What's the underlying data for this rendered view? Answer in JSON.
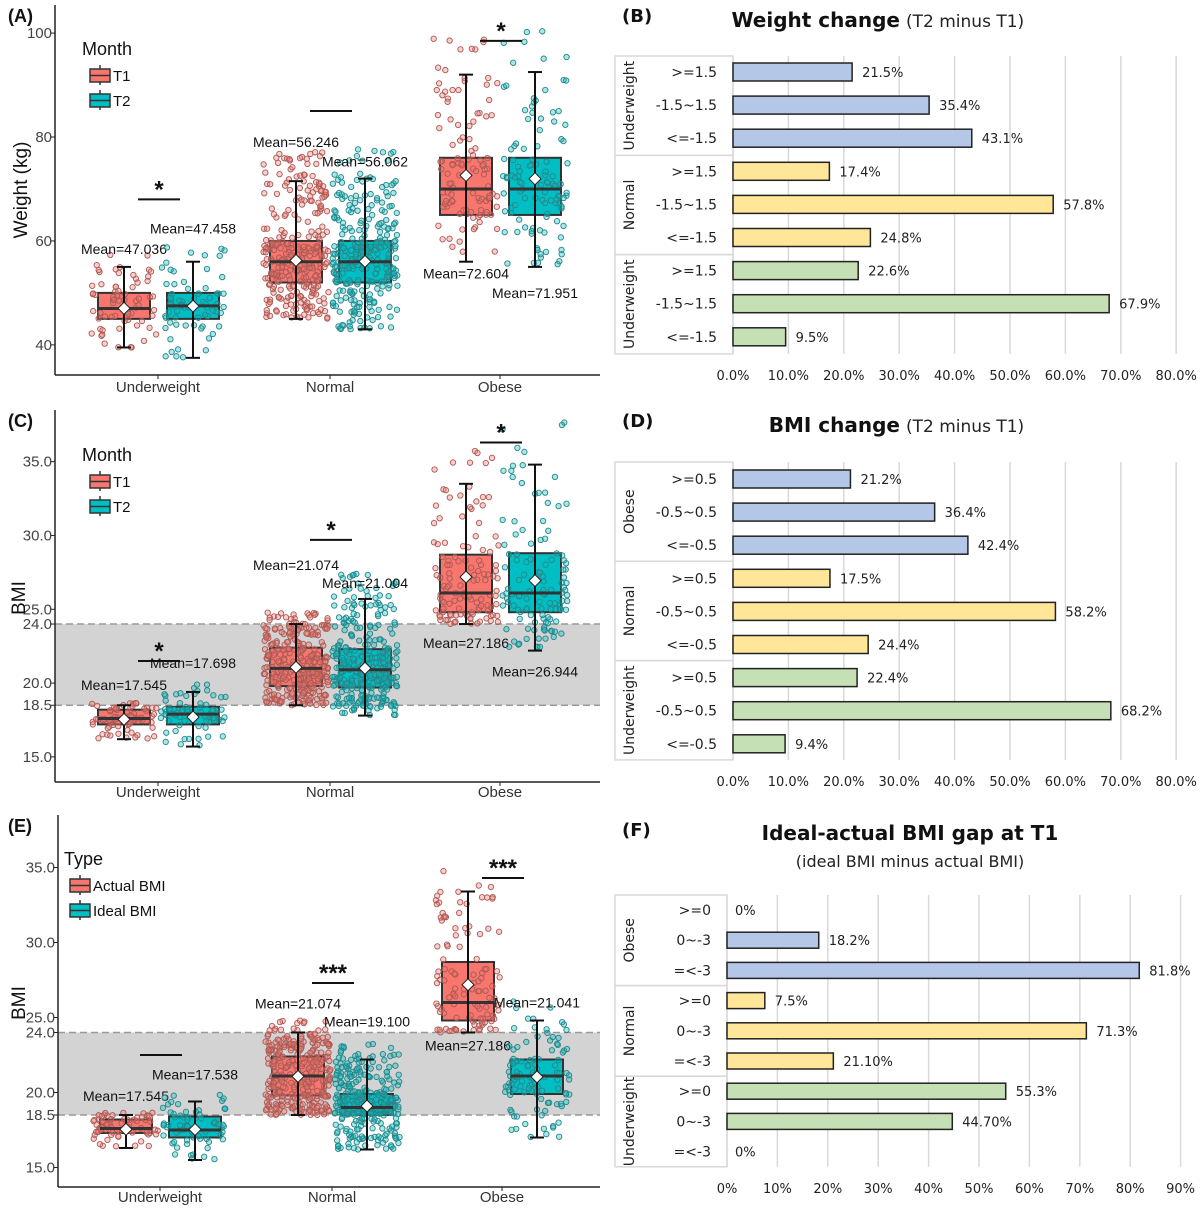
{
  "chart_data": [
    {
      "panel_label": "(A)",
      "type": "box",
      "ylabel": "Weight (kg)",
      "xlabel": "",
      "ylim": [
        34.2,
        105.4
      ],
      "yticks": [
        40,
        60,
        80,
        100
      ],
      "ytick_labels": [
        "40",
        "60",
        "80",
        "100"
      ],
      "categories": [
        "Underweight",
        "Normal",
        "Obese"
      ],
      "legend_title": "Month",
      "legend_position": "top-left",
      "series": [
        {
          "name": "T1",
          "color": "#f8766d",
          "boxes": [
            {
              "min": 39.5,
              "q1": 45,
              "median": 47,
              "q3": 50,
              "max": 55,
              "mean": 47.036,
              "mean_label": "Mean=47.036"
            },
            {
              "min": 45,
              "q1": 52,
              "median": 56,
              "q3": 60,
              "max": 71.5,
              "mean": 56.246,
              "mean_label": "Mean=56.246"
            },
            {
              "min": 56,
              "q1": 65,
              "median": 70,
              "q3": 76,
              "max": 92,
              "mean": 72.604,
              "mean_label": "Mean=72.604"
            }
          ]
        },
        {
          "name": "T2",
          "color": "#00bfc4",
          "boxes": [
            {
              "min": 37.5,
              "q1": 45,
              "median": 47.5,
              "q3": 50,
              "max": 56,
              "mean": 47.458,
              "mean_label": "Mean=47.458"
            },
            {
              "min": 43,
              "q1": 52,
              "median": 56,
              "q3": 60,
              "max": 72,
              "mean": 56.062,
              "mean_label": "Mean=56.062"
            },
            {
              "min": 55,
              "q1": 65,
              "median": 70,
              "q3": 76,
              "max": 92.5,
              "mean": 71.951,
              "mean_label": "Mean=71.951"
            }
          ]
        }
      ],
      "significance": [
        {
          "label": "*",
          "y": 68
        },
        {
          "label": "",
          "y": 85
        },
        {
          "label": "*",
          "y": 98.5
        }
      ]
    },
    {
      "panel_label": "(B)",
      "type": "bar",
      "orientation": "horizontal",
      "title": "Weight change",
      "title_suffix": "(T2 minus T1)",
      "xlim": [
        0,
        80
      ],
      "xticks": [
        0,
        10,
        20,
        30,
        40,
        50,
        60,
        70,
        80
      ],
      "xtick_labels": [
        "0.0%",
        "10.0%",
        "20.0%",
        "30.0%",
        "40.0%",
        "50.0%",
        "60.0%",
        "70.0%",
        "80.0%"
      ],
      "grid": true,
      "groups": [
        {
          "name": "Underweight",
          "color": "#b4c7e7",
          "categories": [
            ">=1.5",
            "-1.5~1.5",
            "<=-1.5"
          ],
          "values": [
            21.5,
            35.4,
            43.1
          ],
          "labels": [
            "21.5%",
            "35.4%",
            "43.1%"
          ]
        },
        {
          "name": "Normal",
          "color": "#ffe699",
          "categories": [
            ">=1.5",
            "-1.5~1.5",
            "<=-1.5"
          ],
          "values": [
            17.4,
            57.8,
            24.8
          ],
          "labels": [
            "17.4%",
            "57.8%",
            "24.8%"
          ]
        },
        {
          "name": "Underweight",
          "color": "#c5e0b4",
          "categories": [
            ">=1.5",
            "-1.5~1.5",
            "<=-1.5"
          ],
          "values": [
            22.6,
            67.9,
            9.5
          ],
          "labels": [
            "22.6%",
            "67.9%",
            "9.5%"
          ]
        }
      ]
    },
    {
      "panel_label": "(C)",
      "type": "box",
      "ylabel": "BMI",
      "xlabel": "",
      "ylim": [
        13.3,
        38.5
      ],
      "yticks": [
        15,
        18.5,
        20,
        24,
        25,
        30,
        35
      ],
      "ytick_labels": [
        "15.0",
        "18.5",
        "20.0",
        "24.0",
        "25.0",
        "30.0",
        "35.0"
      ],
      "reference_band": [
        18.5,
        24
      ],
      "categories": [
        "Underweight",
        "Normal",
        "Obese"
      ],
      "legend_title": "Month",
      "legend_position": "top-left",
      "series": [
        {
          "name": "T1",
          "color": "#f8766d",
          "boxes": [
            {
              "min": 16.2,
              "q1": 17.2,
              "median": 17.6,
              "q3": 18.2,
              "max": 18.5,
              "mean": 17.545,
              "mean_label": "Mean=17.545"
            },
            {
              "min": 18.5,
              "q1": 19.8,
              "median": 21.0,
              "q3": 22.4,
              "max": 24.0,
              "mean": 21.074,
              "mean_label": "Mean=21.074"
            },
            {
              "min": 24.0,
              "q1": 24.8,
              "median": 26.1,
              "q3": 28.7,
              "max": 33.5,
              "mean": 27.186,
              "mean_label": "Mean=27.186"
            }
          ]
        },
        {
          "name": "T2",
          "color": "#00bfc4",
          "boxes": [
            {
              "min": 15.7,
              "q1": 17.2,
              "median": 17.9,
              "q3": 18.4,
              "max": 19.4,
              "mean": 17.698,
              "mean_label": "Mean=17.698"
            },
            {
              "min": 17.8,
              "q1": 19.7,
              "median": 20.9,
              "q3": 22.3,
              "max": 25.7,
              "mean": 21.004,
              "mean_label": "Mean=21.004"
            },
            {
              "min": 22.2,
              "q1": 24.8,
              "median": 26.1,
              "q3": 28.8,
              "max": 34.8,
              "mean": 26.944,
              "mean_label": "Mean=26.944"
            }
          ]
        }
      ],
      "significance": [
        {
          "label": "*",
          "y": 21.5
        },
        {
          "label": "*",
          "y": 29.7
        },
        {
          "label": "*",
          "y": 36.3
        }
      ]
    },
    {
      "panel_label": "(D)",
      "type": "bar",
      "orientation": "horizontal",
      "title": "BMI change",
      "title_suffix": "(T2 minus T1)",
      "xlim": [
        0,
        80
      ],
      "xticks": [
        0,
        10,
        20,
        30,
        40,
        50,
        60,
        70,
        80
      ],
      "xtick_labels": [
        "0.0%",
        "10.0%",
        "20.0%",
        "30.0%",
        "40.0%",
        "50.0%",
        "60.0%",
        "70.0%",
        "80.0%"
      ],
      "grid": true,
      "groups": [
        {
          "name": "Obese",
          "color": "#b4c7e7",
          "categories": [
            ">=0.5",
            "-0.5~0.5",
            "<=-0.5"
          ],
          "values": [
            21.2,
            36.4,
            42.4
          ],
          "labels": [
            "21.2%",
            "36.4%",
            "42.4%"
          ]
        },
        {
          "name": "Normal",
          "color": "#ffe699",
          "categories": [
            ">=0.5",
            "-0.5~0.5",
            "<=-0.5"
          ],
          "values": [
            17.5,
            58.2,
            24.4
          ],
          "labels": [
            "17.5%",
            "58.2%",
            "24.4%"
          ]
        },
        {
          "name": "Underweight",
          "color": "#c5e0b4",
          "categories": [
            ">=0.5",
            "-0.5~0.5",
            "<=-0.5"
          ],
          "values": [
            22.4,
            68.2,
            9.4
          ],
          "labels": [
            "22.4%",
            "68.2%",
            "9.4%"
          ]
        }
      ]
    },
    {
      "panel_label": "(E)",
      "type": "box",
      "ylabel": "BMI",
      "xlabel": "",
      "ylim": [
        13.7,
        38.5
      ],
      "yticks": [
        15,
        18.5,
        20,
        24,
        25,
        30,
        35
      ],
      "ytick_labels": [
        "15.0",
        "18.5",
        "20.0",
        "24.0",
        "25.0",
        "30.0",
        "35.0"
      ],
      "reference_band": [
        18.5,
        24
      ],
      "categories": [
        "Underweight",
        "Normal",
        "Obese"
      ],
      "legend_title": "Type",
      "legend_position": "top-left",
      "series": [
        {
          "name": "Actual BMI",
          "color": "#f8766d",
          "boxes": [
            {
              "min": 16.3,
              "q1": 17.3,
              "median": 17.6,
              "q3": 18.2,
              "max": 18.5,
              "mean": 17.545,
              "mean_label": "Mean=17.545"
            },
            {
              "min": 18.5,
              "q1": 19.8,
              "median": 21.1,
              "q3": 22.4,
              "max": 24.0,
              "mean": 21.074,
              "mean_label": "Mean=21.074"
            },
            {
              "min": 24.0,
              "q1": 24.8,
              "median": 26.0,
              "q3": 28.7,
              "max": 33.4,
              "mean": 27.186,
              "mean_label": "Mean=27.186"
            }
          ]
        },
        {
          "name": "Ideal BMI",
          "color": "#00bfc4",
          "boxes": [
            {
              "min": 15.5,
              "q1": 17.0,
              "median": 17.5,
              "q3": 18.4,
              "max": 19.4,
              "mean": 17.538,
              "mean_label": "Mean=17.538"
            },
            {
              "min": 16.2,
              "q1": 18.5,
              "median": 19.0,
              "q3": 19.9,
              "max": 22.2,
              "mean": 19.1,
              "mean_label": "Mean=19.100"
            },
            {
              "min": 17.0,
              "q1": 19.9,
              "median": 21.1,
              "q3": 22.2,
              "max": 24.8,
              "mean": 21.041,
              "mean_label": "Mean=21.041"
            }
          ]
        }
      ],
      "significance": [
        {
          "label": "",
          "y": 22.5
        },
        {
          "label": "***",
          "y": 27.3
        },
        {
          "label": "***",
          "y": 34.3
        }
      ]
    },
    {
      "panel_label": "(F)",
      "type": "bar",
      "orientation": "horizontal",
      "title": "Ideal-actual BMI gap at T1",
      "subtitle": "(ideal BMI minus actual BMI)",
      "xlim": [
        0,
        90
      ],
      "xticks": [
        0,
        10,
        20,
        30,
        40,
        50,
        60,
        70,
        80,
        90
      ],
      "xtick_labels": [
        "0%",
        "10%",
        "20%",
        "30%",
        "40%",
        "50%",
        "60%",
        "70%",
        "80%",
        "90%"
      ],
      "grid": true,
      "groups": [
        {
          "name": "Obese",
          "color": "#b4c7e7",
          "categories": [
            ">=0",
            "0~-3",
            "=<-3"
          ],
          "values": [
            0,
            18.2,
            81.8
          ],
          "labels": [
            "0%",
            "18.2%",
            "81.8%"
          ]
        },
        {
          "name": "Normal",
          "color": "#ffe699",
          "categories": [
            ">=0",
            "0~-3",
            "=<-3"
          ],
          "values": [
            7.5,
            71.3,
            21.1
          ],
          "labels": [
            "7.5%",
            "71.3%",
            "21.10%"
          ]
        },
        {
          "name": "Underweight",
          "color": "#c5e0b4",
          "categories": [
            ">=0",
            "0~-3",
            "=<-3"
          ],
          "values": [
            55.3,
            44.7,
            0
          ],
          "labels": [
            "55.3%",
            "44.70%",
            "0%"
          ]
        }
      ]
    }
  ]
}
